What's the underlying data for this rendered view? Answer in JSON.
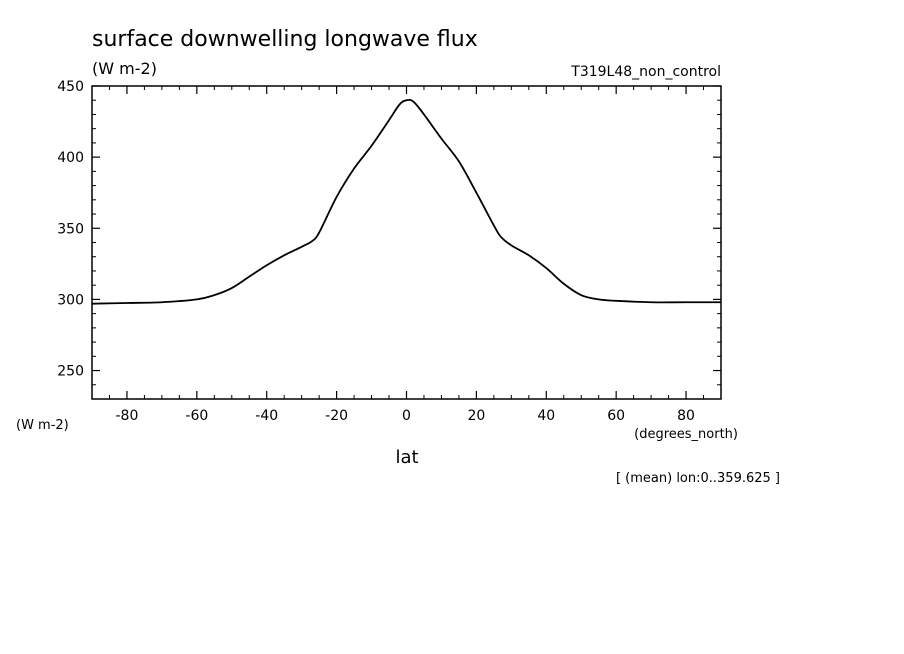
{
  "chart_data": {
    "type": "line",
    "title": "surface downwelling longwave flux",
    "subtitle": "(W m-2)",
    "run_label": "T319L48_non_control",
    "y_units_label": "(W m-2)",
    "x_units_label": "(degrees_north)",
    "xlabel": "lat",
    "footnote": "[ (mean) lon:0..359.625 ]",
    "xlim": [
      -90,
      90
    ],
    "ylim": [
      230,
      450
    ],
    "x_ticks": [
      -80,
      -60,
      -40,
      -20,
      0,
      20,
      40,
      60,
      80
    ],
    "x_tick_labels": [
      "-80",
      "-60",
      "-40",
      "-20",
      "0",
      "20",
      "40",
      "60",
      "80"
    ],
    "y_ticks": [
      250,
      300,
      350,
      400,
      450
    ],
    "y_tick_labels": [
      "250",
      "300",
      "350",
      "400",
      "450"
    ],
    "grid": false,
    "series": [
      {
        "x": [
          -90,
          -80,
          -70,
          -60,
          -55,
          -50,
          -45,
          -40,
          -35,
          -30,
          -27,
          -25,
          -20,
          -15,
          -10,
          -5,
          -2,
          0,
          2,
          5,
          10,
          15,
          20,
          25,
          27,
          30,
          35,
          40,
          45,
          50,
          55,
          60,
          70,
          80,
          90
        ],
        "y": [
          297,
          297.5,
          298,
          300,
          303,
          308,
          316,
          324,
          331,
          337,
          341,
          347,
          372,
          392,
          408,
          426,
          437,
          440,
          439,
          430,
          413,
          397,
          375,
          352,
          344,
          338,
          331,
          322,
          311,
          303,
          300,
          299,
          298,
          298,
          298
        ]
      }
    ]
  }
}
